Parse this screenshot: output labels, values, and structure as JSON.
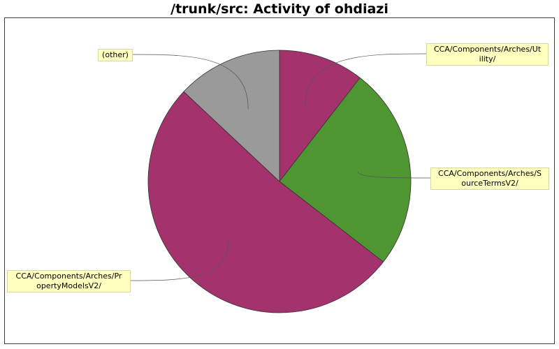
{
  "chart_data": {
    "type": "pie",
    "title": "/trunk/src: Activity of ohdiazi",
    "slices": [
      {
        "label": "CCA/Components/Arches/Utility/",
        "display_label": "CCA/Components/Arches/Ut\nility/",
        "value": 10.5,
        "color": "#a3326d"
      },
      {
        "label": "CCA/Components/Arches/SourceTermsV2/",
        "display_label": "CCA/Components/Arches/S\nourceTermsV2/",
        "value": 25.0,
        "color": "#4f9532"
      },
      {
        "label": "CCA/Components/Arches/PropertyModelsV2/",
        "display_label": "CCA/Components/Arches/Pr\nopertyModelsV2/",
        "value": 51.5,
        "color": "#a3326d"
      },
      {
        "label": "(other)",
        "display_label": "(other)",
        "value": 13.0,
        "color": "#9a9a9a"
      }
    ],
    "start_angle_deg": 0,
    "direction": "clockwise",
    "legend": "none"
  }
}
